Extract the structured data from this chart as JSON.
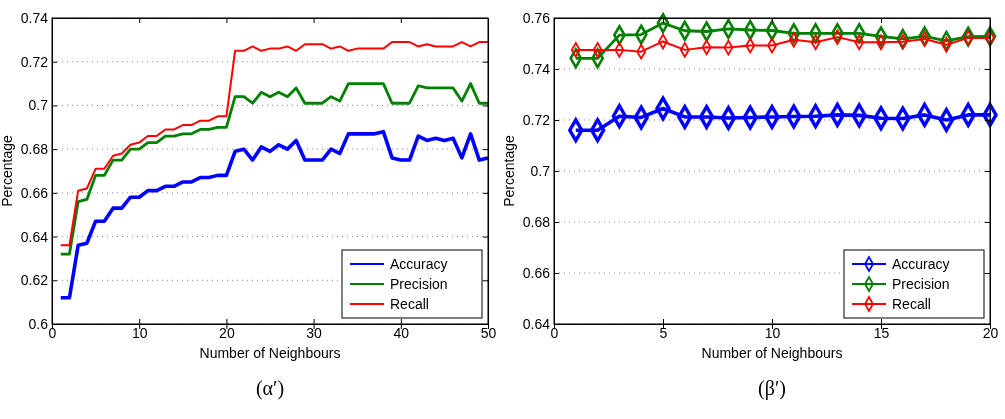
{
  "chart_data": [
    {
      "type": "line",
      "title": "(α′)",
      "xlabel": "Number of Neighbours",
      "ylabel": "Percentage",
      "x": [
        1,
        2,
        3,
        4,
        5,
        6,
        7,
        8,
        9,
        10,
        11,
        12,
        13,
        14,
        15,
        16,
        17,
        18,
        19,
        20,
        21,
        22,
        23,
        24,
        25,
        26,
        27,
        28,
        29,
        30,
        31,
        32,
        33,
        34,
        35,
        36,
        37,
        38,
        39,
        40,
        41,
        42,
        43,
        44,
        45,
        46,
        47,
        48,
        49,
        50
      ],
      "series": [
        {
          "name": "Accuracy",
          "color": "#0000ff",
          "values": [
            0.612,
            0.612,
            0.636,
            0.637,
            0.647,
            0.647,
            0.653,
            0.653,
            0.658,
            0.658,
            0.661,
            0.661,
            0.663,
            0.663,
            0.665,
            0.665,
            0.667,
            0.667,
            0.668,
            0.668,
            0.679,
            0.68,
            0.675,
            0.681,
            0.679,
            0.682,
            0.68,
            0.684,
            0.675,
            0.675,
            0.675,
            0.68,
            0.678,
            0.687,
            0.687,
            0.687,
            0.687,
            0.688,
            0.676,
            0.675,
            0.675,
            0.686,
            0.684,
            0.685,
            0.684,
            0.685,
            0.676,
            0.687,
            0.675,
            0.676
          ]
        },
        {
          "name": "Precision",
          "color": "#008000",
          "values": [
            0.632,
            0.632,
            0.656,
            0.657,
            0.668,
            0.668,
            0.675,
            0.675,
            0.68,
            0.68,
            0.683,
            0.683,
            0.686,
            0.686,
            0.687,
            0.687,
            0.689,
            0.689,
            0.69,
            0.69,
            0.704,
            0.704,
            0.701,
            0.706,
            0.704,
            0.706,
            0.704,
            0.708,
            0.701,
            0.701,
            0.701,
            0.704,
            0.702,
            0.71,
            0.71,
            0.71,
            0.71,
            0.71,
            0.701,
            0.701,
            0.701,
            0.709,
            0.708,
            0.708,
            0.708,
            0.708,
            0.702,
            0.71,
            0.701,
            0.701
          ]
        },
        {
          "name": "Recall",
          "color": "#ff0000",
          "values": [
            0.636,
            0.636,
            0.661,
            0.662,
            0.671,
            0.671,
            0.677,
            0.678,
            0.682,
            0.683,
            0.686,
            0.686,
            0.689,
            0.689,
            0.691,
            0.691,
            0.693,
            0.693,
            0.695,
            0.695,
            0.725,
            0.725,
            0.727,
            0.725,
            0.726,
            0.726,
            0.727,
            0.725,
            0.728,
            0.728,
            0.728,
            0.726,
            0.727,
            0.725,
            0.726,
            0.726,
            0.726,
            0.726,
            0.729,
            0.729,
            0.729,
            0.727,
            0.728,
            0.727,
            0.727,
            0.727,
            0.729,
            0.727,
            0.729,
            0.729
          ]
        }
      ],
      "xlim": [
        0,
        50
      ],
      "xticks": [
        0,
        10,
        20,
        30,
        40,
        50
      ],
      "ylim": [
        0.6,
        0.74
      ],
      "yticks": [
        0.6,
        0.62,
        0.64,
        0.66,
        0.68,
        0.7,
        0.72,
        0.74
      ],
      "grid": "y",
      "legend": "bottom right",
      "marker": "none"
    },
    {
      "type": "line",
      "title": "(β′)",
      "xlabel": "Number of Neighbours",
      "ylabel": "Percentage",
      "x": [
        1,
        2,
        3,
        4,
        5,
        6,
        7,
        8,
        9,
        10,
        11,
        12,
        13,
        14,
        15,
        16,
        17,
        18,
        19,
        20
      ],
      "series": [
        {
          "name": "Accuracy",
          "color": "#0000ff",
          "values": [
            0.716,
            0.716,
            0.7215,
            0.721,
            0.7245,
            0.7212,
            0.7212,
            0.7208,
            0.721,
            0.7212,
            0.7214,
            0.7215,
            0.722,
            0.7218,
            0.7207,
            0.7206,
            0.722,
            0.72,
            0.722,
            0.722
          ]
        },
        {
          "name": "Precision",
          "color": "#008000",
          "values": [
            0.7442,
            0.7442,
            0.7533,
            0.7535,
            0.758,
            0.755,
            0.7547,
            0.7557,
            0.7553,
            0.7551,
            0.754,
            0.754,
            0.754,
            0.754,
            0.7528,
            0.7518,
            0.7528,
            0.751,
            0.7527,
            0.7528
          ]
        },
        {
          "name": "Recall",
          "color": "#ff0000",
          "values": [
            0.7475,
            0.7475,
            0.7475,
            0.7468,
            0.7508,
            0.7475,
            0.7485,
            0.7484,
            0.7492,
            0.7492,
            0.7515,
            0.7505,
            0.7525,
            0.7505,
            0.7505,
            0.7507,
            0.7518,
            0.7495,
            0.7522,
            0.7522
          ]
        }
      ],
      "xlim": [
        0,
        20
      ],
      "xticks": [
        0,
        5,
        10,
        15,
        20
      ],
      "ylim": [
        0.64,
        0.76
      ],
      "yticks": [
        0.64,
        0.66,
        0.68,
        0.7,
        0.72,
        0.74,
        0.76
      ],
      "grid": "y",
      "legend": "bottom right",
      "marker": "diamond"
    }
  ]
}
